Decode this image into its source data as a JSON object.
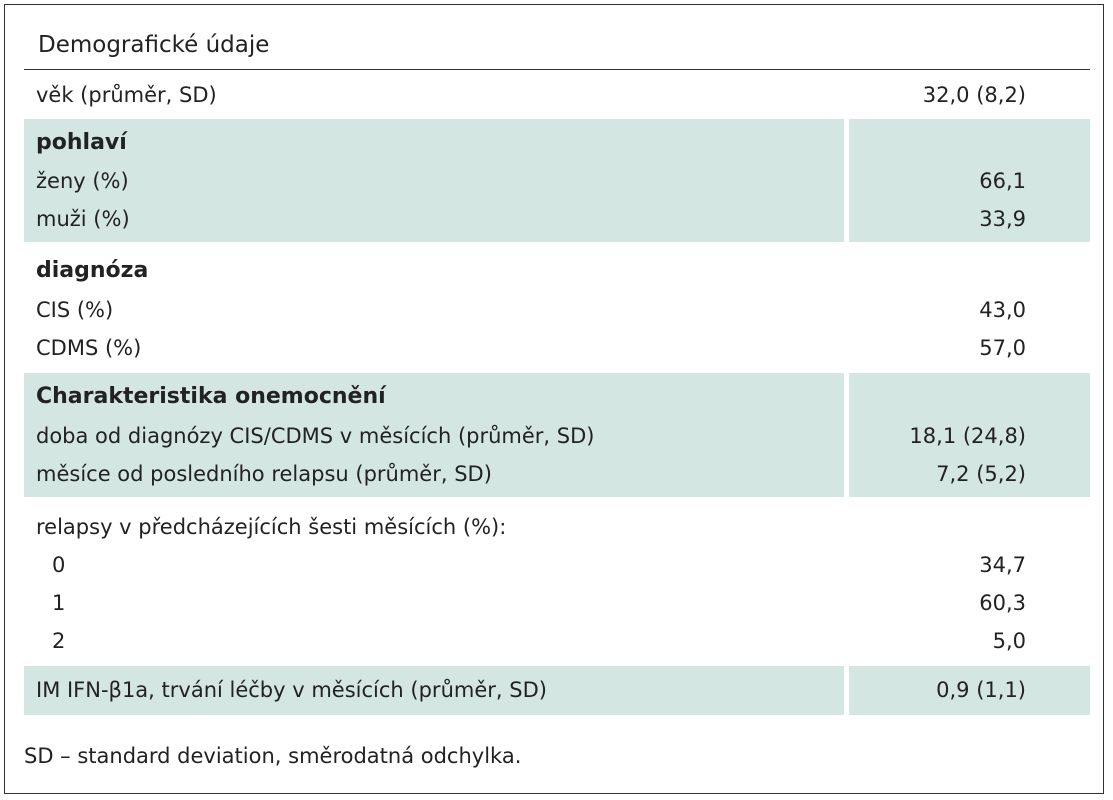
{
  "table": {
    "heading": "Demografické údaje",
    "age": {
      "label": "věk (průměr, SD)",
      "value": "32,0 (8,2)"
    },
    "sex": {
      "title": "pohlaví",
      "rows": [
        {
          "label": "ženy (%)",
          "value": "66,1"
        },
        {
          "label": "muži (%)",
          "value": "33,9"
        }
      ]
    },
    "diagnosis": {
      "title": "diagnóza",
      "rows": [
        {
          "label": "CIS (%)",
          "value": "43,0"
        },
        {
          "label": "CDMS (%)",
          "value": "57,0"
        }
      ]
    },
    "disease": {
      "title": "Charakteristika onemocnění",
      "rows": [
        {
          "label": "doba od diagnózy CIS/CDMS v měsících (průměr, SD)",
          "value": "18,1 (24,8)"
        },
        {
          "label": "měsíce od posledního relapsu (průměr, SD)",
          "value": "7,2 (5,2)"
        }
      ]
    },
    "relapses": {
      "title": "relapsy v předcházejících šesti měsících (%):",
      "rows": [
        {
          "label": "0",
          "value": "34,7"
        },
        {
          "label": "1",
          "value": "60,3"
        },
        {
          "label": "2",
          "value": "5,0"
        }
      ]
    },
    "treatment": {
      "label": "IM IFN-β1a, trvání léčby v měsících (průměr, SD)",
      "value": "0,9 (1,1)"
    }
  },
  "footnote": "SD – standard deviation, směrodatná odchylka.",
  "colors": {
    "shade": "#d3e6e1",
    "border": "#333333",
    "text": "#222222"
  }
}
